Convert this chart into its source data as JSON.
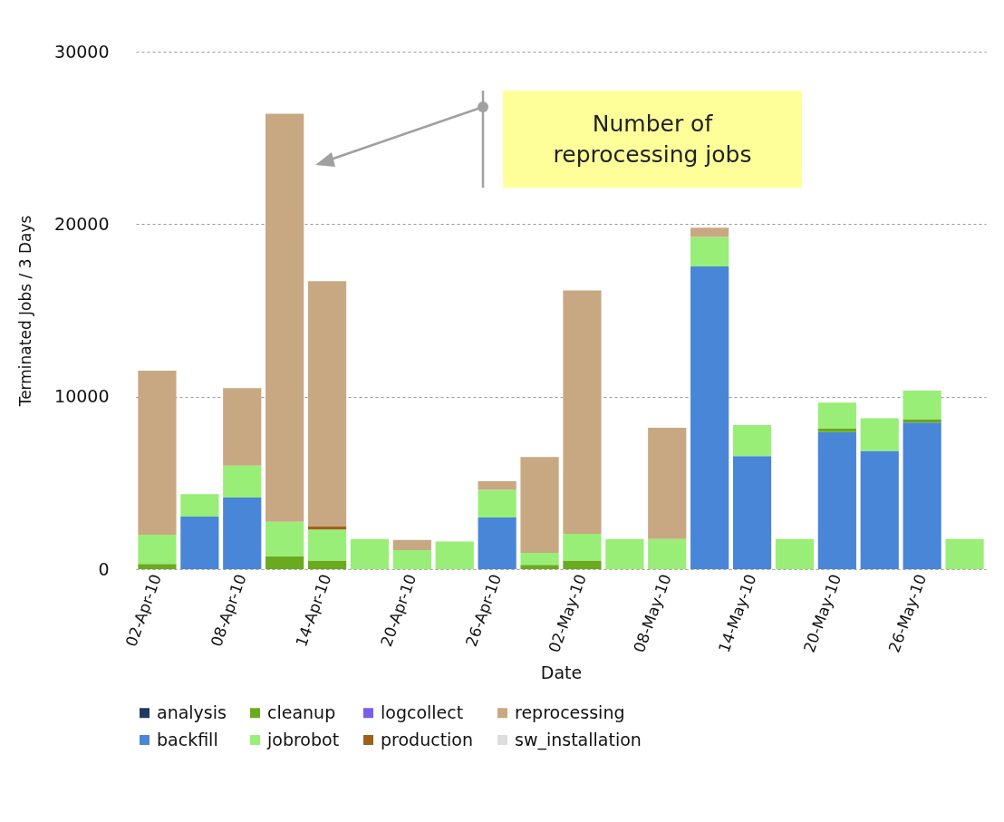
{
  "chart_data": {
    "type": "bar",
    "stacked": true,
    "xlabel": "Date",
    "ylabel": "Terminated Jobs / 3 Days",
    "categories": [
      "02-Apr-10",
      null,
      "08-Apr-10",
      null,
      "14-Apr-10",
      null,
      "20-Apr-10",
      null,
      "26-Apr-10",
      null,
      "02-May-10",
      null,
      "08-May-10",
      null,
      "14-May-10",
      null,
      "20-May-10",
      null,
      "26-May-10",
      null
    ],
    "series": [
      {
        "name": "analysis",
        "color": "#1f3a5f",
        "values": [
          0,
          0,
          0,
          0,
          0,
          0,
          0,
          0,
          0,
          0,
          0,
          0,
          0,
          0,
          0,
          0,
          0,
          0,
          0,
          0
        ]
      },
      {
        "name": "backfill",
        "color": "#4a86d8",
        "values": [
          0,
          3050,
          4150,
          0,
          0,
          0,
          0,
          0,
          3000,
          0,
          0,
          0,
          0,
          17550,
          6550,
          0,
          7950,
          6850,
          8500,
          0
        ]
      },
      {
        "name": "cleanup",
        "color": "#6aaa1e",
        "values": [
          300,
          0,
          0,
          750,
          500,
          0,
          0,
          0,
          0,
          250,
          500,
          0,
          0,
          0,
          0,
          0,
          200,
          0,
          200,
          0
        ]
      },
      {
        "name": "jobrobot",
        "color": "#99ee77",
        "values": [
          1700,
          1300,
          1850,
          2000,
          1800,
          1750,
          1100,
          1600,
          1600,
          700,
          1550,
          1750,
          1750,
          1700,
          1800,
          1750,
          1500,
          1900,
          1650,
          1750
        ]
      },
      {
        "name": "logcollect",
        "color": "#7b5cf0",
        "values": [
          0,
          0,
          0,
          0,
          0,
          0,
          0,
          0,
          0,
          0,
          0,
          0,
          0,
          0,
          0,
          0,
          0,
          0,
          0,
          0
        ]
      },
      {
        "name": "production",
        "color": "#a0601a",
        "values": [
          0,
          0,
          0,
          0,
          200,
          0,
          0,
          0,
          0,
          0,
          0,
          0,
          0,
          0,
          0,
          0,
          0,
          0,
          0,
          0
        ]
      },
      {
        "name": "reprocessing",
        "color": "#c8a882",
        "values": [
          9500,
          0,
          4500,
          23650,
          14200,
          0,
          600,
          0,
          500,
          5550,
          14100,
          0,
          6450,
          550,
          0,
          0,
          0,
          0,
          0,
          0
        ]
      },
      {
        "name": "sw_installation",
        "color": "#dddddd",
        "values": [
          0,
          0,
          0,
          0,
          0,
          0,
          0,
          0,
          0,
          0,
          0,
          0,
          0,
          0,
          0,
          0,
          0,
          0,
          0,
          0
        ]
      }
    ],
    "ylim": [
      0,
      30000
    ],
    "yticks": [
      0,
      10000,
      20000,
      30000
    ],
    "grid": "y",
    "legend": "bottom",
    "annotations": [
      "Number of\nreprocessing jobs"
    ]
  }
}
